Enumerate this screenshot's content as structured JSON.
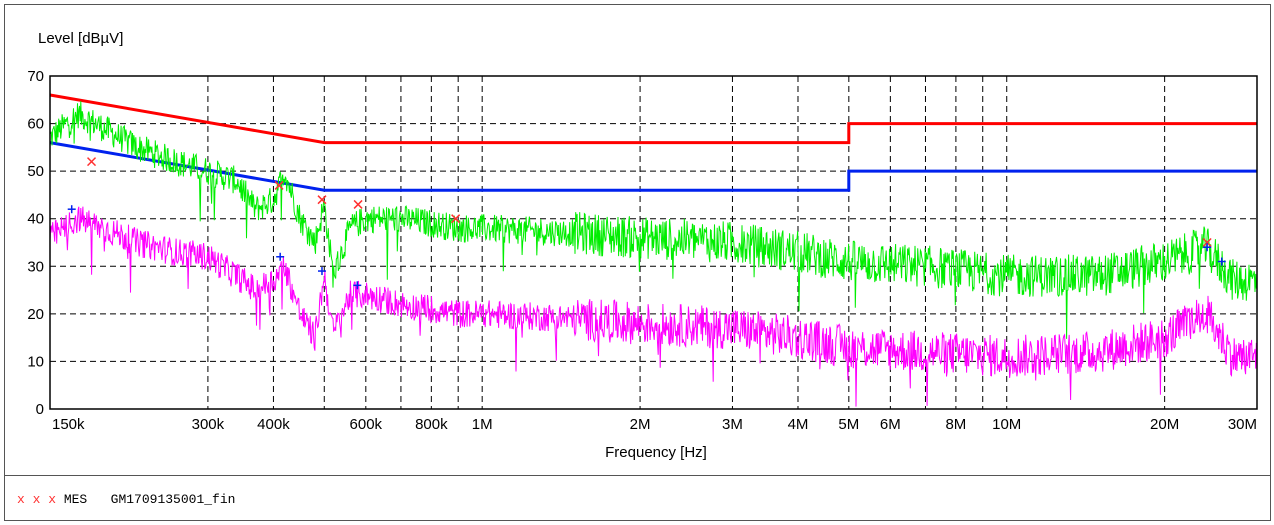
{
  "chart_data": {
    "type": "line",
    "ylabel": "Level [dBµV]",
    "xlabel": "Frequency [Hz]",
    "x_scale": "log",
    "xlim": [
      150000,
      30000000
    ],
    "ylim": [
      0,
      70
    ],
    "grid": true,
    "y_ticks": [
      0,
      10,
      20,
      30,
      40,
      50,
      60,
      70
    ],
    "x_ticks": [
      {
        "value": 150000,
        "label": "150k"
      },
      {
        "value": 300000,
        "label": "300k"
      },
      {
        "value": 400000,
        "label": "400k"
      },
      {
        "value": 500000,
        "label": ""
      },
      {
        "value": 600000,
        "label": "600k"
      },
      {
        "value": 700000,
        "label": ""
      },
      {
        "value": 800000,
        "label": "800k"
      },
      {
        "value": 900000,
        "label": ""
      },
      {
        "value": 1000000,
        "label": "1M"
      },
      {
        "value": 2000000,
        "label": "2M"
      },
      {
        "value": 3000000,
        "label": "3M"
      },
      {
        "value": 4000000,
        "label": "4M"
      },
      {
        "value": 5000000,
        "label": "5M"
      },
      {
        "value": 6000000,
        "label": "6M"
      },
      {
        "value": 7000000,
        "label": ""
      },
      {
        "value": 8000000,
        "label": "8M"
      },
      {
        "value": 9000000,
        "label": ""
      },
      {
        "value": 10000000,
        "label": "10M"
      },
      {
        "value": 20000000,
        "label": "20M"
      },
      {
        "value": 30000000,
        "label": "30M"
      }
    ],
    "series": [
      {
        "color": "#ff0000",
        "kind": "limit-quasi-peak",
        "x": [
          150000,
          500000,
          500000,
          5000000,
          5000000,
          30000000
        ],
        "y": [
          66,
          56,
          56,
          56,
          60,
          60
        ]
      },
      {
        "color": "#0022ee",
        "kind": "limit-average",
        "x": [
          150000,
          500000,
          500000,
          5000000,
          5000000,
          30000000
        ],
        "y": [
          56,
          46,
          46,
          46,
          50,
          50
        ]
      },
      {
        "color": "#00ee00",
        "kind": "peak-scan",
        "x": [
          150000,
          170000,
          190000,
          220000,
          260000,
          300000,
          340000,
          370000,
          400000,
          420000,
          450000,
          480000,
          500000,
          520000,
          560000,
          600000,
          700000,
          800000,
          900000,
          1000000,
          1500000,
          2000000,
          3000000,
          4000000,
          5000000,
          7000000,
          10000000,
          15000000,
          20000000,
          24000000,
          27000000,
          30000000
        ],
        "y": [
          57,
          62,
          59,
          55,
          52,
          50,
          48,
          42,
          44,
          50,
          40,
          35,
          43,
          28,
          38,
          40,
          40,
          39,
          38,
          38,
          37,
          36,
          35,
          33,
          31,
          30,
          28,
          28,
          31,
          34,
          27,
          27
        ]
      },
      {
        "color": "#ff00ff",
        "kind": "average-scan",
        "x": [
          150000,
          170000,
          190000,
          220000,
          260000,
          300000,
          340000,
          370000,
          400000,
          420000,
          450000,
          480000,
          500000,
          520000,
          560000,
          600000,
          700000,
          800000,
          900000,
          1000000,
          1500000,
          2000000,
          3000000,
          4000000,
          5000000,
          7000000,
          10000000,
          15000000,
          20000000,
          24000000,
          27000000,
          30000000
        ],
        "y": [
          36,
          40,
          38,
          35,
          33,
          32,
          28,
          25,
          27,
          30,
          20,
          15,
          28,
          16,
          24,
          24,
          22,
          21,
          20,
          20,
          19,
          18,
          17,
          15,
          13,
          12,
          11,
          12,
          15,
          20,
          11,
          11
        ]
      },
      {
        "color": "#ff3030",
        "kind": "quasi-peak-markers",
        "marker": "x",
        "x": [
          180000,
          410000,
          495000,
          580000,
          890000,
          24100000
        ],
        "y": [
          52,
          47,
          44,
          43,
          40,
          35
        ]
      },
      {
        "color": "#0022ee",
        "kind": "average-markers",
        "marker": "+",
        "x": [
          165000,
          412000,
          495000,
          578000,
          24100000,
          25700000
        ],
        "y": [
          42,
          32,
          29,
          26,
          34,
          31
        ]
      }
    ]
  },
  "legend": {
    "markers": "x x x",
    "prefix": "MES",
    "name": "GM1709135001_fin"
  }
}
